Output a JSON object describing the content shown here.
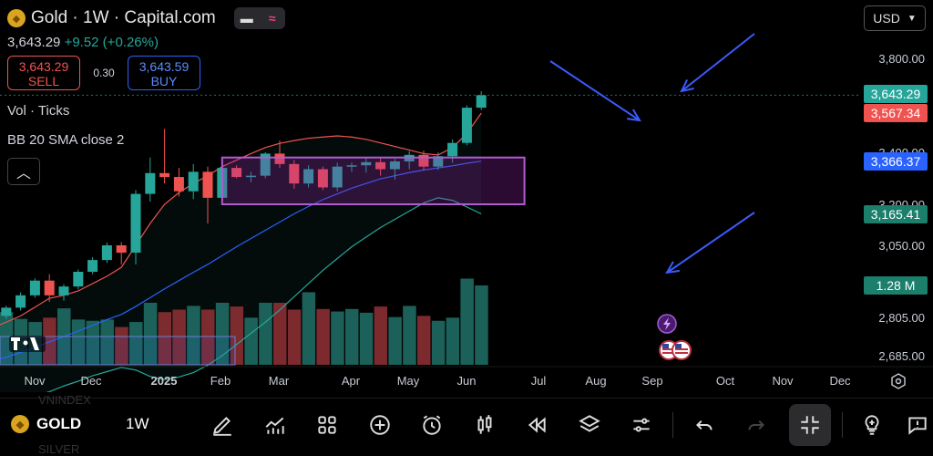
{
  "header": {
    "title": "Gold · 1W · Capital.com",
    "price": "3,643.29",
    "change": "+9.52 (+0.26%)",
    "sell_price": "3,643.29",
    "sell_label": "SELL",
    "spread": "0.30",
    "buy_price": "3,643.59",
    "buy_label": "BUY"
  },
  "indicators": {
    "volume": "Vol · Ticks",
    "bb": "BB 20 SMA close 2"
  },
  "currency": "USD",
  "price_labels": {
    "last": "3,643.29",
    "bb_upper": "3,567.34",
    "bb_basis": "3,366.37",
    "bb_lower": "3,165.41",
    "volume": "1.28 M"
  },
  "colors": {
    "up": "#26a69a",
    "down": "#ef5350",
    "upper": "#ef5350",
    "basis": "#2962ff",
    "lower": "#26a69a",
    "box": "#9c27b0",
    "arrow": "#3b5bfd"
  },
  "bottom": {
    "symbol": "GOLD",
    "interval": "1W",
    "ghost_above": "VNINDEX",
    "ghost_below": "SILVER"
  },
  "chart_data": {
    "type": "candlestick",
    "x_ticks": [
      "Nov",
      "Dec",
      "2025",
      "Feb",
      "Mar",
      "Apr",
      "May",
      "Jun",
      "Jul",
      "Aug",
      "Sep",
      "Oct",
      "Nov",
      "Dec"
    ],
    "y_ticks": [
      "3,800.00",
      "3,400.00",
      "3,200.00",
      "3,050.00",
      "2,805.00",
      "2,685.00"
    ],
    "y_tick_values": [
      3800,
      3400,
      3200,
      3050,
      2805,
      2685
    ],
    "candles": [
      {
        "o": 2660,
        "h": 2676,
        "l": 2640,
        "c": 2650
      },
      {
        "o": 2650,
        "h": 2668,
        "l": 2632,
        "c": 2656
      },
      {
        "o": 2656,
        "h": 2690,
        "l": 2645,
        "c": 2680
      },
      {
        "o": 2680,
        "h": 2710,
        "l": 2672,
        "c": 2700
      },
      {
        "o": 2700,
        "h": 2762,
        "l": 2695,
        "c": 2755
      },
      {
        "o": 2755,
        "h": 2820,
        "l": 2748,
        "c": 2810
      },
      {
        "o": 2810,
        "h": 2845,
        "l": 2800,
        "c": 2838
      },
      {
        "o": 2838,
        "h": 2890,
        "l": 2828,
        "c": 2880
      },
      {
        "o": 2880,
        "h": 2938,
        "l": 2872,
        "c": 2930
      },
      {
        "o": 2930,
        "h": 2952,
        "l": 2858,
        "c": 2880
      },
      {
        "o": 2880,
        "h": 2918,
        "l": 2862,
        "c": 2910
      },
      {
        "o": 2910,
        "h": 2968,
        "l": 2900,
        "c": 2960
      },
      {
        "o": 2960,
        "h": 3010,
        "l": 2952,
        "c": 3000
      },
      {
        "o": 3000,
        "h": 3060,
        "l": 2990,
        "c": 3050
      },
      {
        "o": 3050,
        "h": 3062,
        "l": 2985,
        "c": 3025
      },
      {
        "o": 3025,
        "h": 3255,
        "l": 2985,
        "c": 3240
      },
      {
        "o": 3240,
        "h": 3380,
        "l": 3210,
        "c": 3320
      },
      {
        "o": 3320,
        "h": 3500,
        "l": 3280,
        "c": 3305
      },
      {
        "o": 3305,
        "h": 3340,
        "l": 3230,
        "c": 3250
      },
      {
        "o": 3250,
        "h": 3355,
        "l": 3220,
        "c": 3325
      },
      {
        "o": 3325,
        "h": 3345,
        "l": 3130,
        "c": 3225
      },
      {
        "o": 3225,
        "h": 3360,
        "l": 3205,
        "c": 3340
      },
      {
        "o": 3340,
        "h": 3350,
        "l": 3300,
        "c": 3305
      },
      {
        "o": 3305,
        "h": 3325,
        "l": 3285,
        "c": 3310
      },
      {
        "o": 3310,
        "h": 3400,
        "l": 3300,
        "c": 3395
      },
      {
        "o": 3395,
        "h": 3450,
        "l": 3340,
        "c": 3355
      },
      {
        "o": 3355,
        "h": 3370,
        "l": 3260,
        "c": 3280
      },
      {
        "o": 3280,
        "h": 3350,
        "l": 3265,
        "c": 3335
      },
      {
        "o": 3335,
        "h": 3345,
        "l": 3255,
        "c": 3265
      },
      {
        "o": 3265,
        "h": 3360,
        "l": 3250,
        "c": 3345
      },
      {
        "o": 3345,
        "h": 3360,
        "l": 3325,
        "c": 3350
      },
      {
        "o": 3350,
        "h": 3378,
        "l": 3322,
        "c": 3362
      },
      {
        "o": 3362,
        "h": 3380,
        "l": 3310,
        "c": 3335
      },
      {
        "o": 3335,
        "h": 3375,
        "l": 3295,
        "c": 3365
      },
      {
        "o": 3365,
        "h": 3405,
        "l": 3335,
        "c": 3390
      },
      {
        "o": 3390,
        "h": 3408,
        "l": 3330,
        "c": 3345
      },
      {
        "o": 3345,
        "h": 3400,
        "l": 3332,
        "c": 3385
      },
      {
        "o": 3385,
        "h": 3455,
        "l": 3360,
        "c": 3440
      },
      {
        "o": 3440,
        "h": 3600,
        "l": 3430,
        "c": 3590
      },
      {
        "o": 3590,
        "h": 3660,
        "l": 3580,
        "c": 3643
      }
    ],
    "volume": [
      0.95,
      0.96,
      1.14,
      0.9,
      0.94,
      0.95,
      0.85,
      0.74,
      0.69,
      0.76,
      0.91,
      0.73,
      0.71,
      0.73,
      0.61,
      0.69,
      1.0,
      0.85,
      0.89,
      0.95,
      0.89,
      1.0,
      0.94,
      0.76,
      1.0,
      1.0,
      0.89,
      1.17,
      0.9,
      0.86,
      0.9,
      0.84,
      0.94,
      0.77,
      0.95,
      0.79,
      0.71,
      0.76,
      1.39,
      1.28
    ],
    "bb_upper": [
      2770,
      2765,
      2760,
      2758,
      2762,
      2772,
      2790,
      2810,
      2840,
      2870,
      2880,
      2895,
      2920,
      2945,
      2975,
      3050,
      3130,
      3200,
      3245,
      3280,
      3310,
      3345,
      3370,
      3395,
      3420,
      3438,
      3450,
      3460,
      3465,
      3470,
      3465,
      3455,
      3440,
      3425,
      3410,
      3395,
      3390,
      3420,
      3480,
      3567
    ],
    "bb_basis": [
      2640,
      2642,
      2645,
      2650,
      2658,
      2668,
      2680,
      2695,
      2712,
      2728,
      2745,
      2762,
      2780,
      2798,
      2815,
      2842,
      2872,
      2902,
      2930,
      2958,
      2985,
      3015,
      3045,
      3075,
      3105,
      3135,
      3165,
      3192,
      3218,
      3240,
      3262,
      3280,
      3298,
      3310,
      3322,
      3332,
      3340,
      3348,
      3358,
      3366
    ],
    "bb_lower": [
      2510,
      2508,
      2510,
      2515,
      2522,
      2530,
      2540,
      2550,
      2560,
      2572,
      2590,
      2605,
      2622,
      2635,
      2648,
      2640,
      2620,
      2610,
      2618,
      2632,
      2655,
      2685,
      2720,
      2755,
      2790,
      2830,
      2875,
      2920,
      2965,
      3005,
      3045,
      3080,
      3115,
      3145,
      3175,
      3205,
      3225,
      3215,
      3190,
      3165
    ],
    "box": {
      "x_from": 21,
      "x_to": 42,
      "y_from": 3200,
      "y_to": 3380
    },
    "last_price": 3643.29,
    "ylim": [
      2650,
      3880
    ],
    "grid": false
  }
}
